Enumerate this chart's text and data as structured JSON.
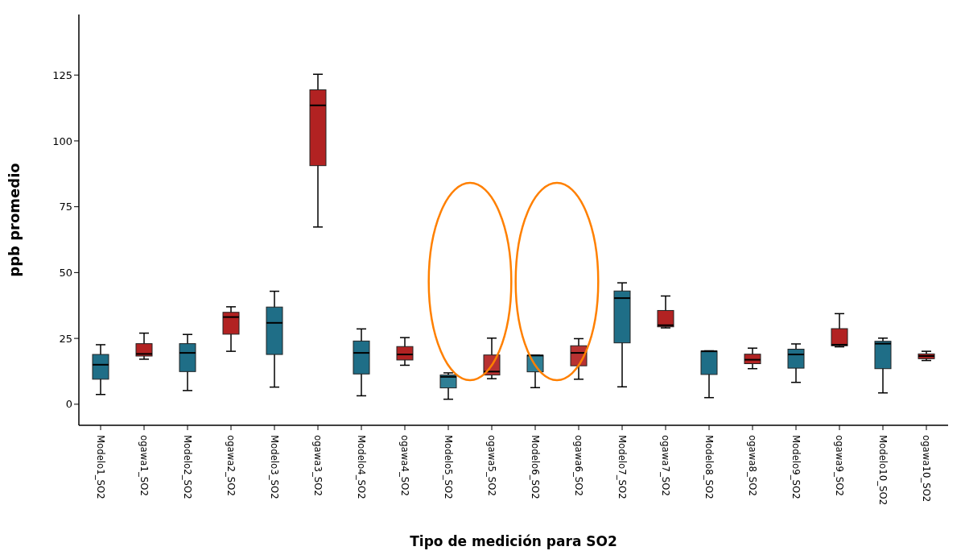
{
  "chart_data": {
    "type": "box",
    "xlabel": "Tipo de medición para SO2",
    "ylabel": "ppb promedio",
    "categories": [
      "Modelo1_SO2",
      "ogawa1_SO2",
      "Modelo2_SO2",
      "ogawa2_SO2",
      "Modelo3_SO2",
      "ogawa3_SO2",
      "Modelo4_SO2",
      "ogawa4_SO2",
      "Modelo5_SO2",
      "ogawa5_SO2",
      "Modelo6_SO2",
      "ogawa6_SO2",
      "Modelo7_SO2",
      "ogawa7_SO2",
      "Modelo8_SO2",
      "ogawa8_SO2",
      "Modelo9_SO2",
      "ogawa9_SO2",
      "Modelo10_SO2",
      "ogawa10_SO2"
    ],
    "colors": [
      "#1f6e87",
      "#b22222",
      "#1f6e87",
      "#b22222",
      "#1f6e87",
      "#b22222",
      "#1f6e87",
      "#b22222",
      "#2f7f95",
      "#b83232",
      "#2f7f95",
      "#b83232",
      "#1f6e87",
      "#b22222",
      "#1f6e87",
      "#b22222",
      "#1f6e87",
      "#b22222",
      "#1f6e87",
      "#b22222"
    ],
    "boxes": [
      {
        "low": 3.7,
        "q1": 9.5,
        "median": 15.0,
        "q3": 18.9,
        "high": 22.6
      },
      {
        "low": 17.1,
        "q1": 18.3,
        "median": 19.1,
        "q3": 23.0,
        "high": 27.0
      },
      {
        "low": 5.2,
        "q1": 12.4,
        "median": 19.5,
        "q3": 23.0,
        "high": 26.5
      },
      {
        "low": 20.1,
        "q1": 26.6,
        "median": 33.1,
        "q3": 34.9,
        "high": 37.0
      },
      {
        "low": 6.5,
        "q1": 18.9,
        "median": 30.9,
        "q3": 36.9,
        "high": 42.9
      },
      {
        "low": 67.3,
        "q1": 90.6,
        "median": 113.5,
        "q3": 119.4,
        "high": 125.3
      },
      {
        "low": 3.2,
        "q1": 11.5,
        "median": 19.5,
        "q3": 24.0,
        "high": 28.6
      },
      {
        "low": 14.8,
        "q1": 16.8,
        "median": 18.9,
        "q3": 21.9,
        "high": 25.3
      },
      {
        "low": 1.9,
        "q1": 6.2,
        "median": 10.4,
        "q3": 11.1,
        "high": 11.9
      },
      {
        "low": 9.7,
        "q1": 11.1,
        "median": 12.4,
        "q3": 18.7,
        "high": 25.1
      },
      {
        "low": 6.3,
        "q1": 12.3,
        "median": 18.5,
        "q3": 18.6,
        "high": 18.6
      },
      {
        "low": 9.5,
        "q1": 14.6,
        "median": 19.5,
        "q3": 22.2,
        "high": 24.9
      },
      {
        "low": 6.6,
        "q1": 23.3,
        "median": 40.3,
        "q3": 43.0,
        "high": 46.1
      },
      {
        "low": 29.0,
        "q1": 29.4,
        "median": 30.0,
        "q3": 35.6,
        "high": 41.1
      },
      {
        "low": 2.5,
        "q1": 11.3,
        "median": 20.1,
        "q3": 20.2,
        "high": 20.3
      },
      {
        "low": 13.5,
        "q1": 15.4,
        "median": 16.9,
        "q3": 19.0,
        "high": 21.3
      },
      {
        "low": 8.3,
        "q1": 13.7,
        "median": 18.9,
        "q3": 20.9,
        "high": 22.9
      },
      {
        "low": 21.8,
        "q1": 22.2,
        "median": 22.6,
        "q3": 28.7,
        "high": 34.4
      },
      {
        "low": 4.3,
        "q1": 13.5,
        "median": 23.0,
        "q3": 23.9,
        "high": 25.1
      },
      {
        "low": 16.6,
        "q1": 17.3,
        "median": 18.3,
        "q3": 19.1,
        "high": 20.1
      }
    ],
    "ylim": [
      -8,
      148
    ],
    "yticks": [
      0,
      25,
      50,
      75,
      100,
      125
    ]
  }
}
